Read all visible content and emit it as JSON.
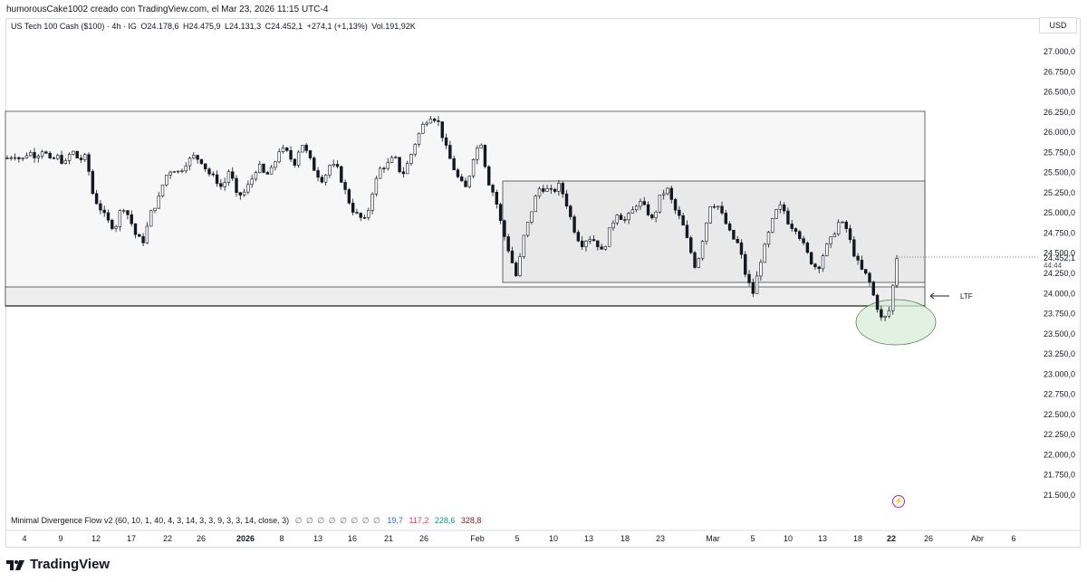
{
  "caption": "humorousCake1002 creado con TradingView.com, el Mar 23, 2026 11:15 UTC-4",
  "legend": {
    "symbol": "US Tech 100 Cash ($100) · 4h · IG",
    "open": "O24.178,6",
    "high": "H24.475,9",
    "low": "L24.131,3",
    "close": "C24.452,1",
    "change": "+274,1 (+1,13%)",
    "volume": "Vol.191,92K"
  },
  "currency_button": "USD",
  "price_axis": [
    "27.000,0",
    "26.750,0",
    "26.500,0",
    "26.250,0",
    "26.000,0",
    "25.750,0",
    "25.500,0",
    "25.250,0",
    "25.000,0",
    "24.750,0",
    "24.500,0",
    "24.250,0",
    "24.000,0",
    "23.750,0",
    "23.500,0",
    "23.250,0",
    "23.000,0",
    "22.750,0",
    "22.500,0",
    "22.250,0",
    "22.000,0",
    "21.750,0",
    "21.500,0"
  ],
  "price_values": [
    27000,
    26750,
    26500,
    26250,
    26000,
    25750,
    25500,
    25250,
    25000,
    24750,
    24500,
    24250,
    24000,
    23750,
    23500,
    23250,
    23000,
    22750,
    22500,
    22250,
    22000,
    21750,
    21500
  ],
  "last_price_label": "24.452,1",
  "countdown_label": "44:44",
  "time_axis": [
    {
      "label": "4",
      "bold": false
    },
    {
      "label": "9",
      "bold": false
    },
    {
      "label": "12",
      "bold": false
    },
    {
      "label": "17",
      "bold": false
    },
    {
      "label": "22",
      "bold": false
    },
    {
      "label": "26",
      "bold": false
    },
    {
      "label": "2026",
      "bold": true
    },
    {
      "label": "8",
      "bold": false
    },
    {
      "label": "13",
      "bold": false
    },
    {
      "label": "16",
      "bold": false
    },
    {
      "label": "21",
      "bold": false
    },
    {
      "label": "26",
      "bold": false
    },
    {
      "label": "Feb",
      "bold": false
    },
    {
      "label": "5",
      "bold": false
    },
    {
      "label": "10",
      "bold": false
    },
    {
      "label": "13",
      "bold": false
    },
    {
      "label": "18",
      "bold": false
    },
    {
      "label": "23",
      "bold": false
    },
    {
      "label": "Mar",
      "bold": false
    },
    {
      "label": "5",
      "bold": false
    },
    {
      "label": "10",
      "bold": false
    },
    {
      "label": "13",
      "bold": false
    },
    {
      "label": "18",
      "bold": false
    },
    {
      "label": "22",
      "bold": true
    },
    {
      "label": "26",
      "bold": false
    },
    {
      "label": "Abr",
      "bold": false
    },
    {
      "label": "6",
      "bold": false
    }
  ],
  "annotation_label": "LTF",
  "indicator": {
    "name": "Minimal Divergence Flow v2 (60, 10, 1, 40, 4, 3, 14, 3, 3, 9, 3, 3, 14, close, 3)",
    "symbols": "∅ ∅ ∅ ∅ ∅ ∅ ∅ ∅",
    "v1": "19,7",
    "v2": "117,2",
    "v3": "228,6",
    "v4": "328,8"
  },
  "brand": "TradingView",
  "colors": {
    "candle": "#131722",
    "zone_fill": "#f5f5f5",
    "zone_fill_dark": "#e8e8e8",
    "circle_fill": "#d8ecd8",
    "circle_stroke": "#5a8a5a"
  },
  "chart_data": {
    "type": "candlestick",
    "price_path": [
      25680,
      25720,
      25650,
      25760,
      25700,
      25790,
      25640,
      25700,
      25600,
      25780,
      25650,
      25700,
      25200,
      25050,
      24900,
      24800,
      25100,
      24950,
      24700,
      24650,
      25000,
      25150,
      25450,
      25550,
      25500,
      25630,
      25700,
      25650,
      25500,
      25420,
      25300,
      25550,
      25200,
      25250,
      25400,
      25600,
      25450,
      25550,
      25800,
      25750,
      25600,
      25880,
      25700,
      25500,
      25400,
      25600,
      25550,
      25300,
      25050,
      24950,
      24900,
      25300,
      25550,
      25600,
      25700,
      25450,
      25650,
      25900,
      26100,
      26200,
      26150,
      25850,
      25600,
      25400,
      25300,
      25700,
      25900,
      25400,
      25200,
      24800,
      24500,
      24200,
      24700,
      25000,
      25300,
      25300,
      25250,
      25350,
      25100,
      24800,
      24600,
      24700,
      24650,
      24500,
      24800,
      25000,
      24900,
      25000,
      25150,
      25050,
      24900,
      25200,
      25300,
      25050,
      24900,
      24600,
      24300,
      24700,
      25100,
      25100,
      24900,
      24700,
      24600,
      24200,
      24000,
      24400,
      24700,
      25000,
      25100,
      24850,
      24800,
      24600,
      24400,
      24300,
      24550,
      24700,
      24900,
      24800,
      24500,
      24300,
      24200,
      23900,
      23650,
      23800,
      24450
    ]
  }
}
